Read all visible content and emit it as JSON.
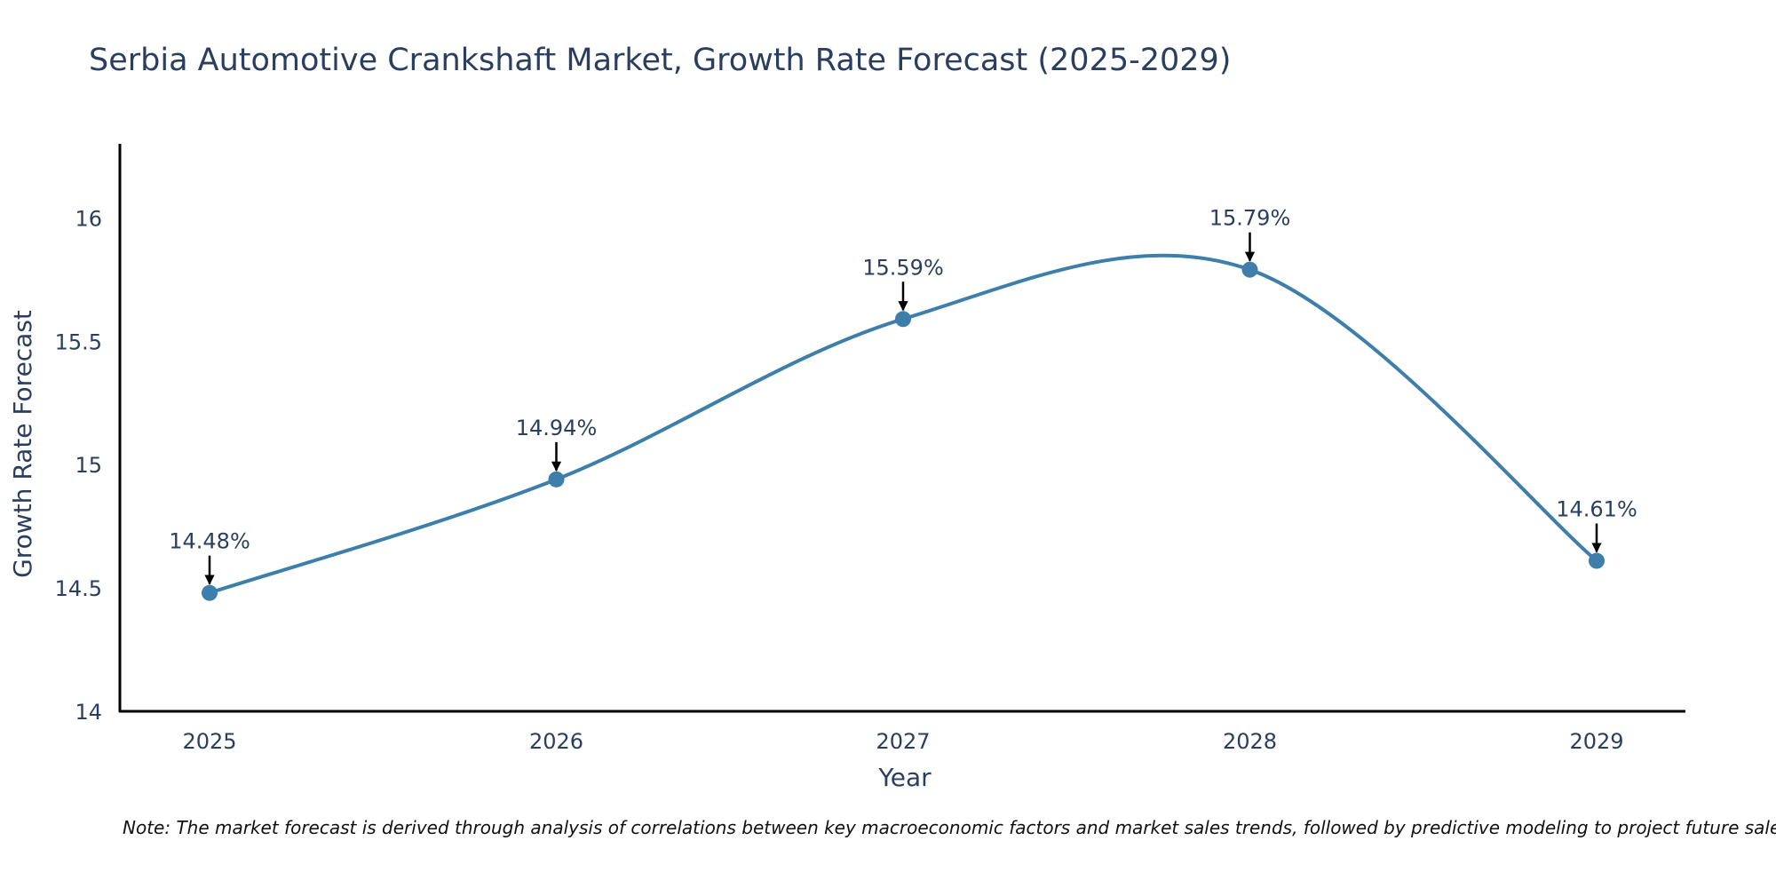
{
  "chart_data": {
    "type": "line",
    "title": "Serbia Automotive Crankshaft Market, Growth Rate Forecast (2025-2029)",
    "xlabel": "Year",
    "ylabel": "Growth Rate Forecast",
    "categories": [
      "2025",
      "2026",
      "2027",
      "2028",
      "2029"
    ],
    "values": [
      14.48,
      14.94,
      15.59,
      15.79,
      14.61
    ],
    "data_labels": [
      "14.48%",
      "14.94%",
      "15.59%",
      "15.79%",
      "14.61%"
    ],
    "y_ticks": [
      14,
      14.5,
      15,
      15.5,
      16
    ],
    "y_tick_labels": [
      "14",
      "14.5",
      "15",
      "15.5",
      "16"
    ],
    "ylim": [
      14,
      16.3
    ],
    "line_shape": "spline",
    "grid": false,
    "colors": {
      "line": "#3d7eaa",
      "marker": "#3d7eaa",
      "arrow": "#000000",
      "axis": "#000000"
    }
  },
  "note": "Note: The market forecast is derived through analysis of correlations between key macroeconomic factors and market sales trends, followed by predictive modeling to project future sales."
}
